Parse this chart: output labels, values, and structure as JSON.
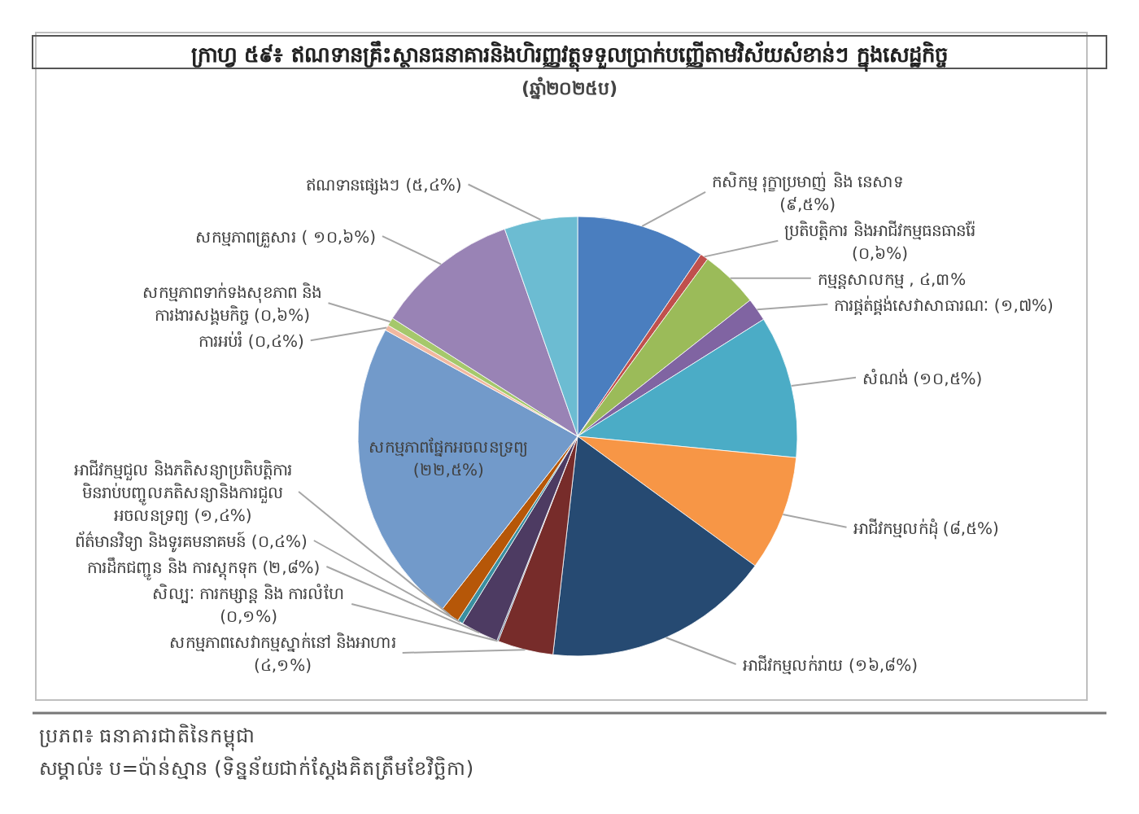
{
  "chart_data": {
    "type": "pie",
    "title": "ក្រាហ្វ ៥៩៖ ឥណទានគ្រឹះស្ថានធនាគារនិងហិរញ្ញវត្ថុទទួលប្រាក់បញ្ញើតាមវិស័យសំខាន់ៗ ក្នុងសេដ្ឋកិច្ច",
    "subtitle": "(ឆ្នាំ២០២៥ប)",
    "categories": [
      "កសិកម្ម រុក្ខាប្រមាញ់ និង នេសាទ (៩,៥%)",
      "ប្រតិបត្តិការ និងអាជីវកម្មធនធានរ៉ែ (០,៦%)",
      "កម្មន្តសាលកម្ម , ៤,៣%",
      "ការផ្គត់ផ្គង់សេវាសាធារណៈ (១,៧%)",
      "សំណង់ (១០,៥%)",
      "អាជីវកម្មលក់ដុំ (៨,៥%)",
      "អាជីវកម្មលក់រាយ (១៦,៨%)",
      "សកម្មភាពសេវាកម្មស្នាក់នៅ និងអាហារ (៤,១%)",
      "សិល្បៈ ការកម្សាន្ត និង ការលំហែ (០,១%)",
      "ការដឹកជញ្ជូន និង ការស្តុកទុក (២,៨%)",
      "ព័ត៌មានវិទ្យា និងទូរគមនាគមន៍ (០,៤%)",
      "អាជីវកម្មជួល និងភតិសន្យាប្រតិបត្តិការ មិនរាប់បញ្ចូលភតិសន្យានិងការជួល អចលនទ្រព្យ (១,៤%)",
      "សកម្មភាពផ្នែកអចលនទ្រព្យ (២២,៥%)",
      "ការអប់រំ (០,៤%)",
      "សកម្មភាពទាក់ទងសុខភាព និង ការងារសង្គមកិច្ច (០,៦%)",
      "សកម្មភាពគ្រួសារ ( ១០,៦%)",
      "ឥណទានផ្សេងៗ (៥,៤%)"
    ],
    "values": [
      9.5,
      0.6,
      4.3,
      1.7,
      10.5,
      8.5,
      16.8,
      4.1,
      0.1,
      2.8,
      0.4,
      1.4,
      22.5,
      0.4,
      0.6,
      10.6,
      5.4
    ],
    "colors": [
      "#4a7ebf",
      "#c0504d",
      "#9bbb59",
      "#8064a2",
      "#4bacc6",
      "#f79646",
      "#264a72",
      "#772c2a",
      "#2c4d75",
      "#4d3b62",
      "#3a8fa0",
      "#b65708",
      "#729aca",
      "#f2b8a0",
      "#a5c86b",
      "#9983b5",
      "#6cbcd2"
    ],
    "annotations": [
      "ប្រភព៖ ធនាគារជាតិនៃកម្ពុជា",
      "សម្គាល់៖ ប=ប៉ាន់ស្មាន (ទិន្នន័យជាក់ស្តែងគិតត្រឹមខែវិច្ឆិកា)"
    ]
  }
}
